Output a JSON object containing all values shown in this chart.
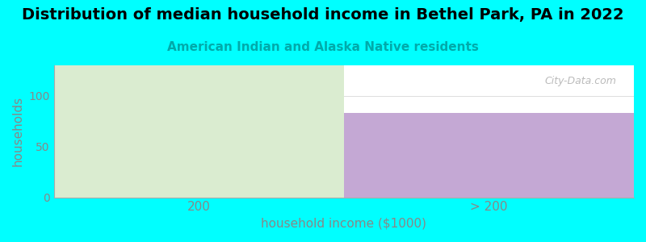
{
  "title": "Distribution of median household income in Bethel Park, PA in 2022",
  "subtitle": "American Indian and Alaska Native residents",
  "categories": [
    "200",
    "> 200"
  ],
  "bar_colors": [
    "#daecd0",
    "#c4a8d4"
  ],
  "left_bar_height": 130,
  "right_bar_height": 83,
  "xlabel": "household income ($1000)",
  "ylabel": "households",
  "ylim": [
    0,
    130
  ],
  "yticks": [
    0,
    50,
    100
  ],
  "background_color": "#00ffff",
  "plot_bg_color": "#ffffff",
  "title_fontsize": 14,
  "subtitle_fontsize": 11,
  "subtitle_color": "#00aaaa",
  "axis_label_color": "#888888",
  "tick_color": "#888888",
  "watermark": "City-Data.com"
}
